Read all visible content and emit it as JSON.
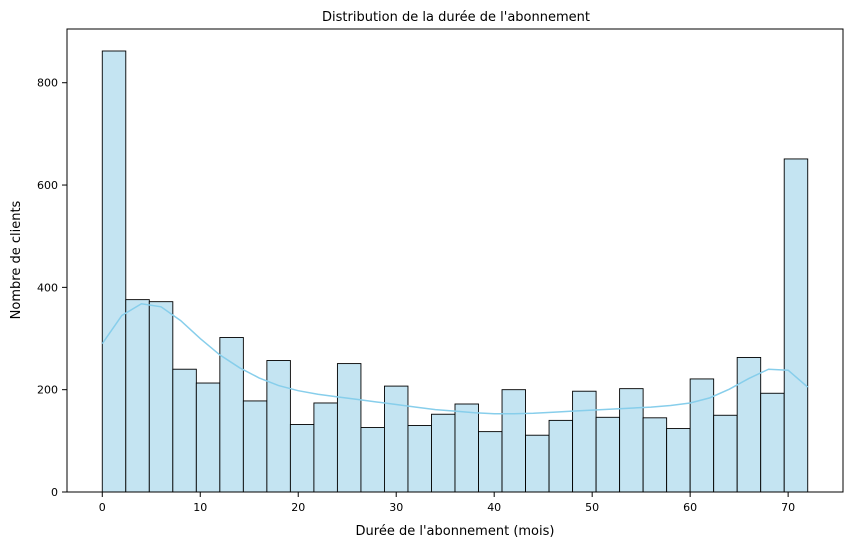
{
  "chart_data": {
    "type": "bar",
    "title": "Distribution de la durée de l'abonnement",
    "xlabel": "Durée de l'abonnement (mois)",
    "ylabel": "Nombre de clients",
    "xlim": [
      -3.6,
      75.6
    ],
    "ylim": [
      0,
      905
    ],
    "xticks": [
      0,
      10,
      20,
      30,
      40,
      50,
      60,
      70
    ],
    "yticks": [
      0,
      200,
      400,
      600,
      800
    ],
    "bin_width": 2.4,
    "bin_start": 0,
    "values": [
      862,
      376,
      372,
      240,
      213,
      302,
      178,
      257,
      132,
      174,
      251,
      126,
      207,
      130,
      152,
      172,
      118,
      200,
      111,
      140,
      197,
      146,
      202,
      145,
      124,
      221,
      150,
      263,
      193,
      651
    ],
    "kde": {
      "x": [
        0,
        2,
        4,
        6,
        8,
        10,
        12,
        14,
        16,
        18,
        20,
        22,
        24,
        26,
        28,
        30,
        32,
        34,
        36,
        38,
        40,
        42,
        44,
        46,
        48,
        50,
        52,
        54,
        56,
        58,
        60,
        62,
        64,
        66,
        68,
        70,
        72
      ],
      "y": [
        290,
        345,
        368,
        362,
        335,
        300,
        268,
        243,
        223,
        208,
        198,
        191,
        186,
        181,
        176,
        171,
        166,
        161,
        158,
        155,
        153,
        153,
        154,
        156,
        158,
        160,
        162,
        164,
        166,
        169,
        174,
        184,
        201,
        222,
        240,
        238,
        205
      ]
    },
    "grid": false,
    "colors": {
      "bar_fill": "#c4e4f2",
      "bar_edge": "#000000",
      "kde_line": "#87ceeb"
    }
  }
}
